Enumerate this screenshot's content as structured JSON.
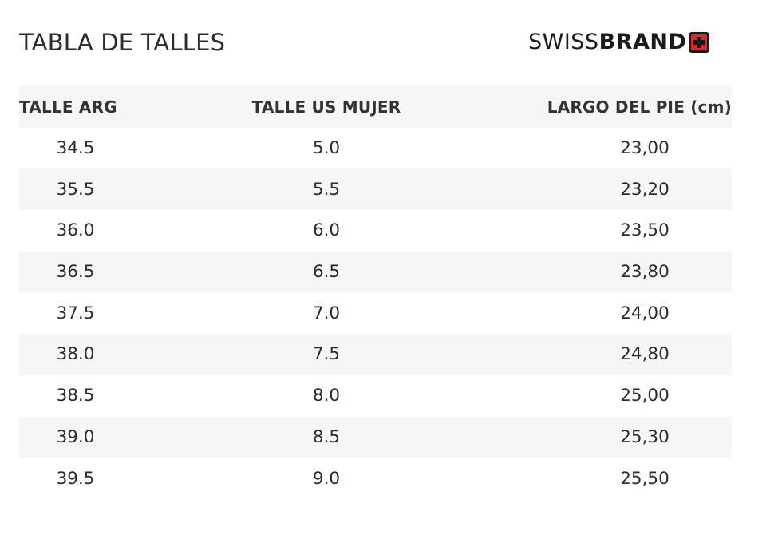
{
  "header": {
    "title": "TABLA DE TALLES",
    "brand_light": "SWISS",
    "brand_bold": "BRAND",
    "brand_icon": "swiss-cross-icon",
    "brand_color": "#d62b2b"
  },
  "table": {
    "columns": [
      "TALLE ARG",
      "TALLE US MUJER",
      "LARGO DEL PIE (cm)"
    ],
    "rows": [
      [
        "34.5",
        "5.0",
        "23,00"
      ],
      [
        "35.5",
        "5.5",
        "23,20"
      ],
      [
        "36.0",
        "6.0",
        "23,50"
      ],
      [
        "36.5",
        "6.5",
        "23,80"
      ],
      [
        "37.5",
        "7.0",
        "24,00"
      ],
      [
        "38.0",
        "7.5",
        "24,80"
      ],
      [
        "38.5",
        "8.0",
        "25,00"
      ],
      [
        "39.0",
        "8.5",
        "25,30"
      ],
      [
        "39.5",
        "9.0",
        "25,50"
      ]
    ]
  }
}
